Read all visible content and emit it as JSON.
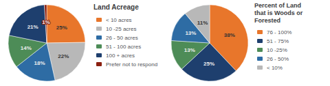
{
  "chart_data": [
    {
      "type": "pie",
      "title": "Land Acreage",
      "categories": [
        "< 10 acres",
        "10 -25 acres",
        "26 - 50 acres",
        "51 - 100 acres",
        "100 + acres",
        "Prefer not to respond"
      ],
      "values": [
        25,
        22,
        18,
        14,
        21,
        1
      ],
      "value_labels": [
        "25%",
        "22%",
        "18%",
        "14%",
        "21%",
        "1%"
      ],
      "colors": [
        "#e8762b",
        "#b8b8b8",
        "#2e6ca4",
        "#4d8c57",
        "#1e3f6e",
        "#8b2010"
      ],
      "data_labels": true
    },
    {
      "type": "pie",
      "title": "Percent of Land\nthat is Woods or\nForested",
      "categories": [
        "76 - 100%",
        "51 - 75%",
        "10 -25%",
        "26 - 50%",
        "< 10%"
      ],
      "values": [
        38,
        25,
        13,
        13,
        11
      ],
      "value_labels": [
        "38%",
        "25%",
        "13%",
        "13%",
        "11%"
      ],
      "colors": [
        "#e8762b",
        "#1e3f6e",
        "#4d8c57",
        "#2e6ca4",
        "#b8b8b8"
      ],
      "data_labels": true
    }
  ]
}
